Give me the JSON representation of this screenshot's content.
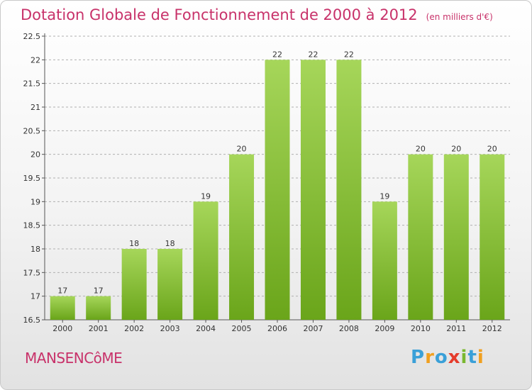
{
  "title": {
    "main": "Dotation Globale de Fonctionnement de 2000 à 2012",
    "unit": "(en milliers d'€)"
  },
  "commune": "MANSENCôME",
  "logo": {
    "text": "Proxiti",
    "letters": [
      "P",
      "r",
      "o",
      "x",
      "i",
      "t",
      "i"
    ],
    "letter_colors": [
      "#3aa0d8",
      "#f0a020",
      "#3aa0d8",
      "#e53c2c",
      "#7ab830",
      "#3aa0d8",
      "#f0a020"
    ]
  },
  "colors": {
    "title": "#c8326a",
    "bar_light": "#a6d65a",
    "bar_dark": "#6aa51a",
    "grid": "#b0b0b0",
    "axis": "#555555"
  },
  "chart_data": {
    "type": "bar",
    "categories": [
      "2000",
      "2001",
      "2002",
      "2003",
      "2004",
      "2005",
      "2006",
      "2007",
      "2008",
      "2009",
      "2010",
      "2011",
      "2012"
    ],
    "values": [
      17,
      17,
      18,
      18,
      19,
      20,
      22,
      22,
      22,
      19,
      20,
      20,
      20
    ],
    "value_labels": [
      "17",
      "17",
      "18",
      "18",
      "19",
      "20",
      "22",
      "22",
      "22",
      "19",
      "20",
      "20",
      "20"
    ],
    "title": "Dotation Globale de Fonctionnement de 2000 à 2012",
    "xlabel": "",
    "ylabel": "",
    "ylim": [
      16.5,
      22.5
    ],
    "yticks": [
      16.5,
      17,
      17.5,
      18,
      18.5,
      19,
      19.5,
      20,
      20.5,
      21,
      21.5,
      22,
      22.5
    ],
    "ytick_labels": [
      "16.5",
      "17",
      "17.5",
      "18",
      "18.5",
      "19",
      "19.5",
      "20",
      "20.5",
      "21",
      "21.5",
      "22",
      "22.5"
    ],
    "grid": true
  }
}
